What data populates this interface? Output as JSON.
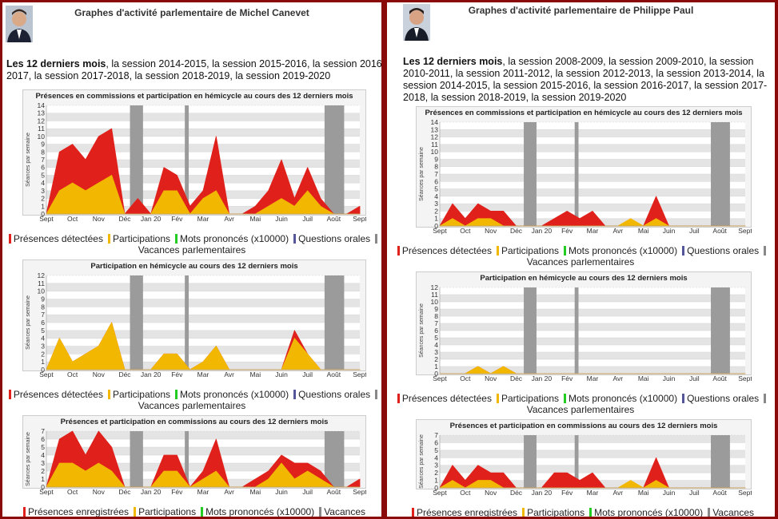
{
  "panels": [
    {
      "title": "Graphes d'activité parlementaire de Michel Canevet",
      "session_bold": "Les 12 derniers mois",
      "session_rest": ", la session 2014-2015, la session 2015-2016, la session 2016-2017, la session 2017-2018, la session 2018-2019, la session 2019-2020",
      "charts": [
        {
          "type": "area",
          "title": "Présences en commissions et participation en hémicycle au cours des 12 derniers mois",
          "ylabel": "Séances par semaine",
          "categories": [
            "Sept",
            null,
            "Oct",
            null,
            "Nov",
            null,
            "Déc",
            null,
            "Jan 20",
            null,
            "Fév",
            null,
            "Mar",
            null,
            "Avr",
            null,
            "Mai",
            null,
            "Juin",
            null,
            "Juil",
            null,
            "Août",
            null,
            "Sept"
          ],
          "ylim": [
            0,
            14
          ],
          "yticks": [
            0,
            1,
            2,
            3,
            4,
            5,
            6,
            7,
            8,
            9,
            10,
            11,
            12,
            13,
            14
          ],
          "bands": [
            [
              6.4,
              7.4
            ],
            [
              10.6,
              10.9
            ],
            [
              21.3,
              22.8
            ]
          ],
          "series": [
            {
              "name": "Présences détectées",
              "color": "#e0201b",
              "values": [
                0,
                8,
                9,
                7,
                10,
                11,
                0,
                2,
                0,
                6,
                5,
                1,
                3,
                10,
                0,
                0,
                1,
                3,
                7,
                2,
                6,
                2,
                0,
                0,
                1
              ]
            },
            {
              "name": "Participations",
              "color": "#f2b700",
              "values": [
                0,
                3,
                4,
                3,
                4,
                5,
                0,
                0,
                0,
                3,
                3,
                0,
                2,
                3,
                0,
                0,
                0,
                1,
                2,
                1,
                3,
                1,
                0,
                0,
                0
              ]
            }
          ],
          "legend": [
            {
              "label": "Mots prononcés (x10000)",
              "color": "#22cc22"
            },
            {
              "label": "Questions orales",
              "color": "#555599"
            },
            {
              "label": "Vacances parlementaires",
              "color": "#888888"
            }
          ]
        },
        {
          "type": "area",
          "title": "Participation en hémicycle au cours des 12 derniers mois",
          "ylabel": "Séances par semaine",
          "categories": [
            "Sept",
            null,
            "Oct",
            null,
            "Nov",
            null,
            "Déc",
            null,
            "Jan 20",
            null,
            "Fév",
            null,
            "Mar",
            null,
            "Avr",
            null,
            "Mai",
            null,
            "Juin",
            null,
            "Juil",
            null,
            "Août",
            null,
            "Sept"
          ],
          "ylim": [
            0,
            12
          ],
          "yticks": [
            0,
            1,
            2,
            3,
            4,
            5,
            6,
            7,
            8,
            9,
            10,
            11,
            12
          ],
          "bands": [
            [
              6.4,
              7.4
            ],
            [
              10.6,
              10.9
            ],
            [
              21.3,
              22.8
            ]
          ],
          "series": [
            {
              "name": "Présences détectées",
              "color": "#e0201b",
              "values": [
                0,
                4,
                1,
                2,
                3,
                6,
                0,
                0,
                0,
                2,
                2,
                0,
                1,
                3,
                0,
                0,
                0,
                0,
                0,
                5,
                2,
                0,
                0,
                0,
                0
              ]
            },
            {
              "name": "Participations",
              "color": "#f2b700",
              "values": [
                0,
                4,
                1,
                2,
                3,
                6,
                0,
                0,
                0,
                2,
                2,
                0,
                1,
                3,
                0,
                0,
                0,
                0,
                0,
                4,
                2,
                0,
                0,
                0,
                0
              ]
            }
          ],
          "legend": [
            {
              "label": "Mots prononcés (x10000)",
              "color": "#22cc22"
            },
            {
              "label": "Questions orales",
              "color": "#555599"
            },
            {
              "label": "Vacances parlementaires",
              "color": "#888888"
            }
          ]
        },
        {
          "type": "area",
          "title": "Présences et participation en commissions au cours des 12 derniers mois",
          "ylabel": "Séances par semaine",
          "categories": [
            "Sept",
            null,
            "Oct",
            null,
            "Nov",
            null,
            "Déc",
            null,
            "Jan 20",
            null,
            "Fév",
            null,
            "Mar",
            null,
            "Avr",
            null,
            "Mai",
            null,
            "Juin",
            null,
            "Juil",
            null,
            "Août",
            null,
            "Sept"
          ],
          "ylim": [
            0,
            7
          ],
          "yticks": [
            0,
            1,
            2,
            3,
            4,
            5,
            6,
            7
          ],
          "bands": [
            [
              6.4,
              7.4
            ],
            [
              10.6,
              10.9
            ],
            [
              21.3,
              22.8
            ]
          ],
          "series": [
            {
              "name": "Présences enregistrées",
              "color": "#e0201b",
              "values": [
                0,
                6,
                7,
                4,
                7,
                5,
                0,
                0,
                0,
                4,
                4,
                0,
                2,
                6,
                0,
                0,
                1,
                2,
                4,
                3,
                3,
                2,
                0,
                0,
                1
              ]
            },
            {
              "name": "Participations",
              "color": "#f2b700",
              "values": [
                0,
                3,
                3,
                2,
                3,
                2,
                0,
                0,
                0,
                2,
                2,
                0,
                1,
                2,
                0,
                0,
                0,
                1,
                3,
                1,
                2,
                1,
                0,
                0,
                0
              ]
            }
          ],
          "legend": [
            {
              "label": "Mots prononcés (x10000)",
              "color": "#22cc22"
            },
            {
              "label": "Vacances parlementaires",
              "color": "#888888"
            }
          ]
        }
      ]
    },
    {
      "title": "Graphes d'activité parlementaire de Philippe Paul",
      "session_bold": "Les 12 derniers mois",
      "session_rest": ", la session 2008-2009, la session 2009-2010, la session 2010-2011, la session 2011-2012, la session 2012-2013, la session 2013-2014, la session 2014-2015, la session 2015-2016, la session 2016-2017, la session 2017-2018, la session 2018-2019, la session 2019-2020",
      "charts": [
        {
          "type": "area",
          "title": "Présences en commissions et participation en hémicycle au cours des 12 derniers mois",
          "ylabel": "Séances par semaine",
          "categories": [
            "Sept",
            null,
            "Oct",
            null,
            "Nov",
            null,
            "Déc",
            null,
            "Jan 20",
            null,
            "Fév",
            null,
            "Mar",
            null,
            "Avr",
            null,
            "Mai",
            null,
            "Juin",
            null,
            "Juil",
            null,
            "Août",
            null,
            "Sept"
          ],
          "ylim": [
            0,
            14
          ],
          "yticks": [
            0,
            1,
            2,
            3,
            4,
            5,
            6,
            7,
            8,
            9,
            10,
            11,
            12,
            13,
            14
          ],
          "bands": [
            [
              6.6,
              7.6
            ],
            [
              10.6,
              10.9
            ],
            [
              21.3,
              22.8
            ]
          ],
          "series": [
            {
              "name": "Présences détectées",
              "color": "#e0201b",
              "values": [
                0,
                3,
                1,
                3,
                2,
                2,
                0,
                0,
                0,
                1,
                2,
                1,
                2,
                0,
                0,
                0,
                0,
                4,
                0,
                0,
                0,
                0,
                0,
                0,
                0
              ]
            },
            {
              "name": "Participations",
              "color": "#f2b700",
              "values": [
                0,
                1,
                0,
                1,
                1,
                0,
                0,
                0,
                0,
                0,
                0,
                0,
                0,
                0,
                0,
                1,
                0,
                1,
                0,
                0,
                0,
                0,
                0,
                0,
                0
              ]
            }
          ],
          "legend": [
            {
              "label": "Mots prononcés (x10000)",
              "color": "#22cc22"
            },
            {
              "label": "Questions orales",
              "color": "#555599"
            },
            {
              "label": "Vacances parlementaires",
              "color": "#888888"
            }
          ]
        },
        {
          "type": "area",
          "title": "Participation en hémicycle au cours des 12 derniers mois",
          "ylabel": "Séances par semaine",
          "categories": [
            "Sept",
            null,
            "Oct",
            null,
            "Nov",
            null,
            "Déc",
            null,
            "Jan 20",
            null,
            "Fév",
            null,
            "Mar",
            null,
            "Avr",
            null,
            "Mai",
            null,
            "Juin",
            null,
            "Juil",
            null,
            "Août",
            null,
            "Sept"
          ],
          "ylim": [
            0,
            12
          ],
          "yticks": [
            0,
            1,
            2,
            3,
            4,
            5,
            6,
            7,
            8,
            9,
            10,
            11,
            12
          ],
          "bands": [
            [
              6.6,
              7.6
            ],
            [
              10.6,
              10.9
            ],
            [
              21.3,
              22.8
            ]
          ],
          "series": [
            {
              "name": "Présences détectées",
              "color": "#e0201b",
              "values": [
                0,
                0,
                0,
                1,
                0,
                1,
                0,
                0,
                0,
                0,
                0,
                0,
                0,
                0,
                0,
                0,
                0,
                0,
                0,
                0,
                0,
                0,
                0,
                0,
                0
              ]
            },
            {
              "name": "Participations",
              "color": "#f2b700",
              "values": [
                0,
                0,
                0,
                1,
                0,
                1,
                0,
                0,
                0,
                0,
                0,
                0,
                0,
                0,
                0,
                0,
                0,
                0,
                0,
                0,
                0,
                0,
                0,
                0,
                0
              ]
            }
          ],
          "legend": [
            {
              "label": "Mots prononcés (x10000)",
              "color": "#22cc22"
            },
            {
              "label": "Questions orales",
              "color": "#555599"
            },
            {
              "label": "Vacances parlementaires",
              "color": "#888888"
            }
          ]
        },
        {
          "type": "area",
          "title": "Présences et participation en commissions au cours des 12 derniers mois",
          "ylabel": "Séances par semaine",
          "categories": [
            "Sept",
            null,
            "Oct",
            null,
            "Nov",
            null,
            "Déc",
            null,
            "Jan 20",
            null,
            "Fév",
            null,
            "Mar",
            null,
            "Avr",
            null,
            "Mai",
            null,
            "Juin",
            null,
            "Juil",
            null,
            "Août",
            null,
            "Sept"
          ],
          "ylim": [
            0,
            7
          ],
          "yticks": [
            0,
            1,
            2,
            3,
            4,
            5,
            6,
            7
          ],
          "bands": [
            [
              6.6,
              7.6
            ],
            [
              10.6,
              10.9
            ],
            [
              21.3,
              22.8
            ]
          ],
          "series": [
            {
              "name": "Présences enregistrées",
              "color": "#e0201b",
              "values": [
                0,
                3,
                1,
                3,
                2,
                2,
                0,
                0,
                0,
                2,
                2,
                1,
                2,
                0,
                0,
                0,
                0,
                4,
                0,
                0,
                0,
                0,
                0,
                0,
                0
              ]
            },
            {
              "name": "Participations",
              "color": "#f2b700",
              "values": [
                0,
                1,
                0,
                1,
                1,
                0,
                0,
                0,
                0,
                0,
                0,
                0,
                0,
                0,
                0,
                1,
                0,
                1,
                0,
                0,
                0,
                0,
                0,
                0,
                0
              ]
            }
          ],
          "legend": [
            {
              "label": "Mots prononcés (x10000)",
              "color": "#22cc22"
            },
            {
              "label": "Vacances parlementaires",
              "color": "#888888"
            }
          ]
        }
      ]
    }
  ]
}
